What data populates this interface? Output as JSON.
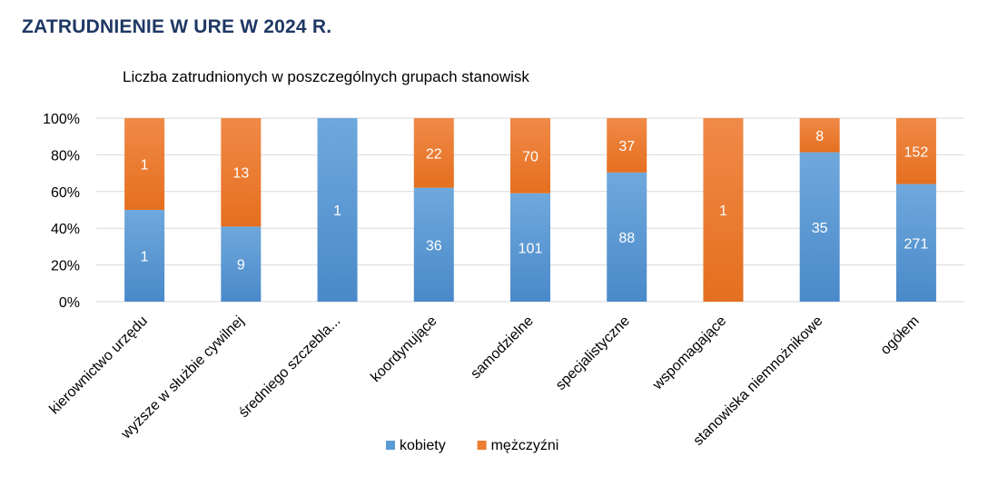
{
  "page": {
    "title": "ZATRUDNIENIE W URE W 2024 R."
  },
  "chart_data": {
    "type": "bar",
    "stacked": "percent",
    "title": "Liczba zatrudnionych w poszczególnych grupach stanowisk",
    "categories": [
      "kierownictwo urzędu",
      "wyższe w służbie cywilnej",
      "średniego szczebla...",
      "koordynujące",
      "samodzielne",
      "specjalistyczne",
      "wspomagające",
      "stanowiska niemnożnikowe",
      "ogółem"
    ],
    "series": [
      {
        "name": "kobiety",
        "color": "#5b9bd5",
        "values": [
          1,
          9,
          1,
          36,
          101,
          88,
          0,
          35,
          271
        ]
      },
      {
        "name": "mężczyźni",
        "color": "#ed7d31",
        "values": [
          1,
          13,
          0,
          22,
          70,
          37,
          1,
          8,
          152
        ]
      }
    ],
    "yticks": [
      "0%",
      "20%",
      "40%",
      "60%",
      "80%",
      "100%"
    ],
    "ylim": [
      0,
      100
    ],
    "grid": true,
    "legend": "bottom"
  }
}
